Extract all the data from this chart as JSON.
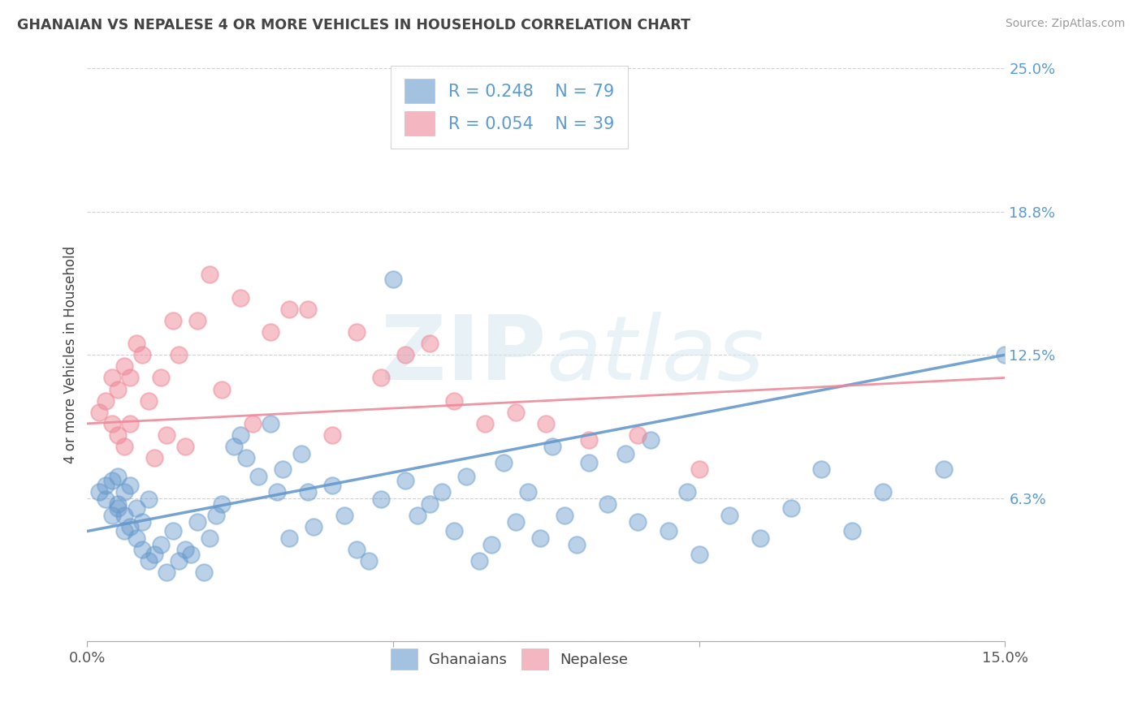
{
  "title": "GHANAIAN VS NEPALESE 4 OR MORE VEHICLES IN HOUSEHOLD CORRELATION CHART",
  "source": "Source: ZipAtlas.com",
  "ylabel": "4 or more Vehicles in Household",
  "xlim": [
    0.0,
    0.15
  ],
  "ylim": [
    0.0,
    0.25
  ],
  "xticks": [
    0.0,
    0.05,
    0.1,
    0.15
  ],
  "xticklabels": [
    "0.0%",
    "",
    "",
    "15.0%"
  ],
  "yticks": [
    0.0,
    0.0625,
    0.125,
    0.1875,
    0.25
  ],
  "yticklabels": [
    "",
    "6.3%",
    "12.5%",
    "18.8%",
    "25.0%"
  ],
  "blue_color": "#6699cc",
  "pink_color": "#ee8899",
  "blue_R": 0.248,
  "blue_N": 79,
  "pink_R": 0.054,
  "pink_N": 39,
  "watermark_zip": "ZIP",
  "watermark_atlas": "atlas",
  "legend_labels": [
    "Ghanaians",
    "Nepalese"
  ],
  "blue_trend_x": [
    0.0,
    0.15
  ],
  "blue_trend_y": [
    0.048,
    0.125
  ],
  "pink_trend_x": [
    0.0,
    0.15
  ],
  "pink_trend_y": [
    0.095,
    0.115
  ],
  "blue_x": [
    0.002,
    0.003,
    0.003,
    0.004,
    0.004,
    0.005,
    0.005,
    0.005,
    0.006,
    0.006,
    0.006,
    0.007,
    0.007,
    0.008,
    0.008,
    0.009,
    0.009,
    0.01,
    0.01,
    0.011,
    0.012,
    0.013,
    0.014,
    0.015,
    0.016,
    0.017,
    0.018,
    0.019,
    0.02,
    0.021,
    0.022,
    0.024,
    0.025,
    0.026,
    0.028,
    0.03,
    0.031,
    0.032,
    0.033,
    0.035,
    0.036,
    0.037,
    0.04,
    0.042,
    0.044,
    0.046,
    0.048,
    0.05,
    0.052,
    0.054,
    0.056,
    0.058,
    0.06,
    0.062,
    0.064,
    0.066,
    0.068,
    0.07,
    0.072,
    0.074,
    0.076,
    0.078,
    0.08,
    0.082,
    0.085,
    0.088,
    0.09,
    0.092,
    0.095,
    0.098,
    0.1,
    0.105,
    0.11,
    0.115,
    0.12,
    0.125,
    0.13,
    0.14,
    0.15
  ],
  "blue_y": [
    0.065,
    0.062,
    0.068,
    0.055,
    0.07,
    0.058,
    0.06,
    0.072,
    0.048,
    0.055,
    0.065,
    0.05,
    0.068,
    0.045,
    0.058,
    0.04,
    0.052,
    0.035,
    0.062,
    0.038,
    0.042,
    0.03,
    0.048,
    0.035,
    0.04,
    0.038,
    0.052,
    0.03,
    0.045,
    0.055,
    0.06,
    0.085,
    0.09,
    0.08,
    0.072,
    0.095,
    0.065,
    0.075,
    0.045,
    0.082,
    0.065,
    0.05,
    0.068,
    0.055,
    0.04,
    0.035,
    0.062,
    0.158,
    0.07,
    0.055,
    0.06,
    0.065,
    0.048,
    0.072,
    0.035,
    0.042,
    0.078,
    0.052,
    0.065,
    0.045,
    0.085,
    0.055,
    0.042,
    0.078,
    0.06,
    0.082,
    0.052,
    0.088,
    0.048,
    0.065,
    0.038,
    0.055,
    0.045,
    0.058,
    0.075,
    0.048,
    0.065,
    0.075,
    0.125
  ],
  "pink_x": [
    0.002,
    0.003,
    0.004,
    0.004,
    0.005,
    0.005,
    0.006,
    0.006,
    0.007,
    0.007,
    0.008,
    0.009,
    0.01,
    0.011,
    0.012,
    0.013,
    0.014,
    0.015,
    0.016,
    0.018,
    0.02,
    0.022,
    0.025,
    0.027,
    0.03,
    0.033,
    0.036,
    0.04,
    0.044,
    0.048,
    0.052,
    0.056,
    0.06,
    0.065,
    0.07,
    0.075,
    0.082,
    0.09,
    0.1
  ],
  "pink_y": [
    0.1,
    0.105,
    0.095,
    0.115,
    0.09,
    0.11,
    0.085,
    0.12,
    0.095,
    0.115,
    0.13,
    0.125,
    0.105,
    0.08,
    0.115,
    0.09,
    0.14,
    0.125,
    0.085,
    0.14,
    0.16,
    0.11,
    0.15,
    0.095,
    0.135,
    0.145,
    0.145,
    0.09,
    0.135,
    0.115,
    0.125,
    0.13,
    0.105,
    0.095,
    0.1,
    0.095,
    0.088,
    0.09,
    0.075
  ]
}
